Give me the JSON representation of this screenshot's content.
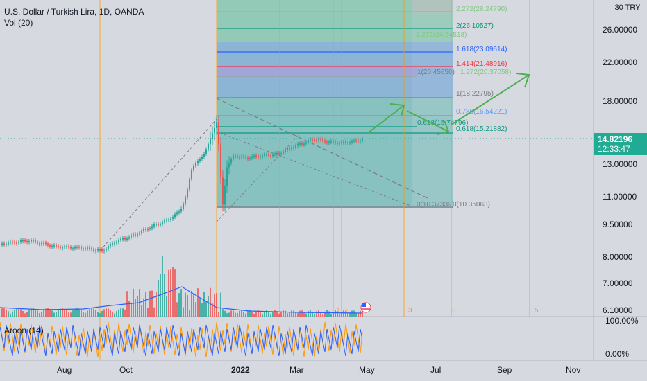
{
  "header": {
    "symbol_title": "U.S. Dollar / Turkish Lira, 1D, OANDA",
    "volume_label": "Vol (20)",
    "aroon_label": "Aroon (14)"
  },
  "price_axis": {
    "unit_top": "30 TRY",
    "ticks": [
      {
        "label": "26.00000",
        "v": 26.0
      },
      {
        "label": "22.00000",
        "v": 22.0
      },
      {
        "label": "18.00000",
        "v": 18.0
      },
      {
        "label": "13.00000",
        "v": 13.0
      },
      {
        "label": "11.00000",
        "v": 11.0
      },
      {
        "label": "9.50000",
        "v": 9.5
      },
      {
        "label": "8.00000",
        "v": 8.0
      },
      {
        "label": "7.00000",
        "v": 7.0
      },
      {
        "label": "6.10000",
        "v": 6.1
      }
    ],
    "current_price": "14.82196",
    "countdown": "12:33:47"
  },
  "aroon_axis": {
    "ticks": [
      "100.00%",
      "0.00%"
    ]
  },
  "time_axis": {
    "ticks": [
      {
        "label": "Aug",
        "bold": false
      },
      {
        "label": "Oct",
        "bold": false
      },
      {
        "label": "2022",
        "bold": true
      },
      {
        "label": "Mar",
        "bold": false
      },
      {
        "label": "May",
        "bold": false
      },
      {
        "label": "Jul",
        "bold": false
      },
      {
        "label": "Sep",
        "bold": false
      },
      {
        "label": "Nov",
        "bold": false
      }
    ]
  },
  "fib_extension_labels": [
    {
      "text": "2.272(28.24790)",
      "color": "#81c784"
    },
    {
      "text": "2(26.10527)",
      "color": "#089981"
    },
    {
      "text": "1.272(24.64518)",
      "color": "#81c784"
    },
    {
      "text": "1.618(23.09614)",
      "color": "#2962ff"
    },
    {
      "text": "1.414(21.48916)",
      "color": "#f23645"
    },
    {
      "text": "1(20.45650)",
      "color": "#787b86"
    },
    {
      "text": "1.272(20.37058)",
      "color": "#81c784"
    },
    {
      "text": "1(18.22795)",
      "color": "#787b86"
    },
    {
      "text": "0.786(16.54221)",
      "color": "#5b9cf6"
    },
    {
      "text": "0.618(15.74796)",
      "color": "#089981"
    },
    {
      "text": "0.618(15.21882)",
      "color": "#089981"
    },
    {
      "text": "0(10.37339)",
      "color": "#787b86"
    },
    {
      "text": "0(10.35063)",
      "color": "#787b86"
    }
  ],
  "time_cycle_labels": [
    "1",
    "2",
    "3",
    "3",
    "5"
  ],
  "colors": {
    "background": "#d7d9e0",
    "up_candle": "#26a69a",
    "down_candle": "#ef5350",
    "volume_ma": "#2962ff",
    "aroon_up": "#ff9800",
    "aroon_down": "#2962ff",
    "cycle_lines": "#ff9800",
    "arrows": "#4caf50",
    "price_tag": "#22ab94"
  },
  "icons": {
    "event_flag": "us-flag-icon"
  }
}
